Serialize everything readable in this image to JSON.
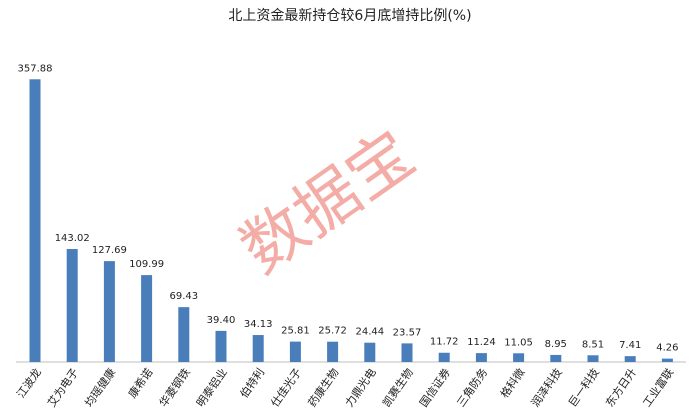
{
  "chart_data": {
    "type": "bar",
    "title": "北上资金最新持仓较6月底增持比例(%)",
    "watermark": "数据宝",
    "categories": [
      "江波龙",
      "艾为电子",
      "均瑶健康",
      "康希诺",
      "华菱钢铁",
      "明泰铝业",
      "伯特利",
      "仕佳光子",
      "药康生物",
      "力鼎光电",
      "凯赛生物",
      "国信证券",
      "三角防务",
      "格科微",
      "润泽科技",
      "巨一科技",
      "东方日升",
      "工业富联"
    ],
    "values": [
      357.88,
      143.02,
      127.69,
      109.99,
      69.43,
      39.4,
      34.13,
      25.81,
      25.72,
      24.44,
      23.57,
      11.72,
      11.24,
      11.05,
      8.95,
      8.51,
      7.41,
      4.26
    ],
    "value_labels": [
      "357.88",
      "143.02",
      "127.69",
      "109.99",
      "69.43",
      "39.40",
      "34.13",
      "25.81",
      "25.72",
      "24.44",
      "23.57",
      "11.72",
      "11.24",
      "11.05",
      "8.95",
      "8.51",
      "7.41",
      "4.26"
    ],
    "color": "#4a7ebb"
  }
}
